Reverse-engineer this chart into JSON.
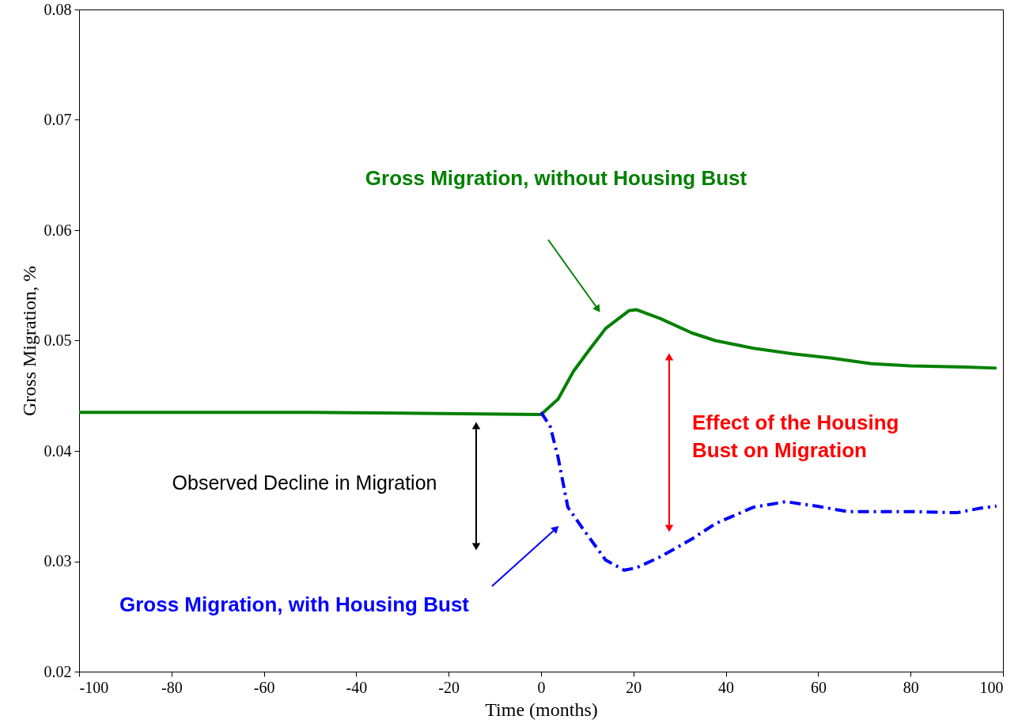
{
  "chart_data": {
    "type": "line",
    "xlabel": "Time (months)",
    "ylabel": "Gross Migration, %",
    "xlim": [
      -100,
      100
    ],
    "xticks": [
      -100,
      -80,
      -60,
      -40,
      -20,
      0,
      20,
      40,
      60,
      80,
      100
    ],
    "ylim": [
      0.02,
      0.08
    ],
    "yticks": [
      0.02,
      0.03,
      0.04,
      0.05,
      0.06,
      0.07,
      0.08
    ],
    "grid": false,
    "marker": "none",
    "series": [
      {
        "color": "#008000",
        "line_style": "solid",
        "x": [
          -100,
          -50,
          0,
          3.7,
          7,
          10.7,
          14,
          19,
          20.6,
          25.8,
          32.6,
          37.7,
          46,
          54.5,
          63,
          71.5,
          80,
          92,
          98.6
        ],
        "values": [
          0.0435,
          0.0435,
          0.0433,
          0.0447,
          0.0472,
          0.0493,
          0.0511,
          0.0527,
          0.0528,
          0.052,
          0.0507,
          0.05,
          0.0493,
          0.0488,
          0.0484,
          0.0479,
          0.0477,
          0.0476,
          0.0475
        ]
      },
      {
        "color": "#0000ff",
        "line_style": "dashdot",
        "x": [
          0,
          2,
          3.7,
          5.8,
          8.8,
          14,
          18,
          20.6,
          25.8,
          32.6,
          37.7,
          46,
          53,
          59.6,
          66.4,
          80,
          90,
          95,
          98.6
        ],
        "values": [
          0.0435,
          0.0422,
          0.0394,
          0.0349,
          0.0331,
          0.0301,
          0.0292,
          0.0294,
          0.0304,
          0.032,
          0.0334,
          0.0349,
          0.0354,
          0.035,
          0.0345,
          0.0345,
          0.0344,
          0.0348,
          0.035
        ]
      }
    ],
    "annotations": [
      "Gross Migration, without Housing Bust",
      "Gross Migration, with Housing Bust",
      "Observed Decline in Migration",
      "Effect of the Housing\nBust on Migration"
    ]
  }
}
